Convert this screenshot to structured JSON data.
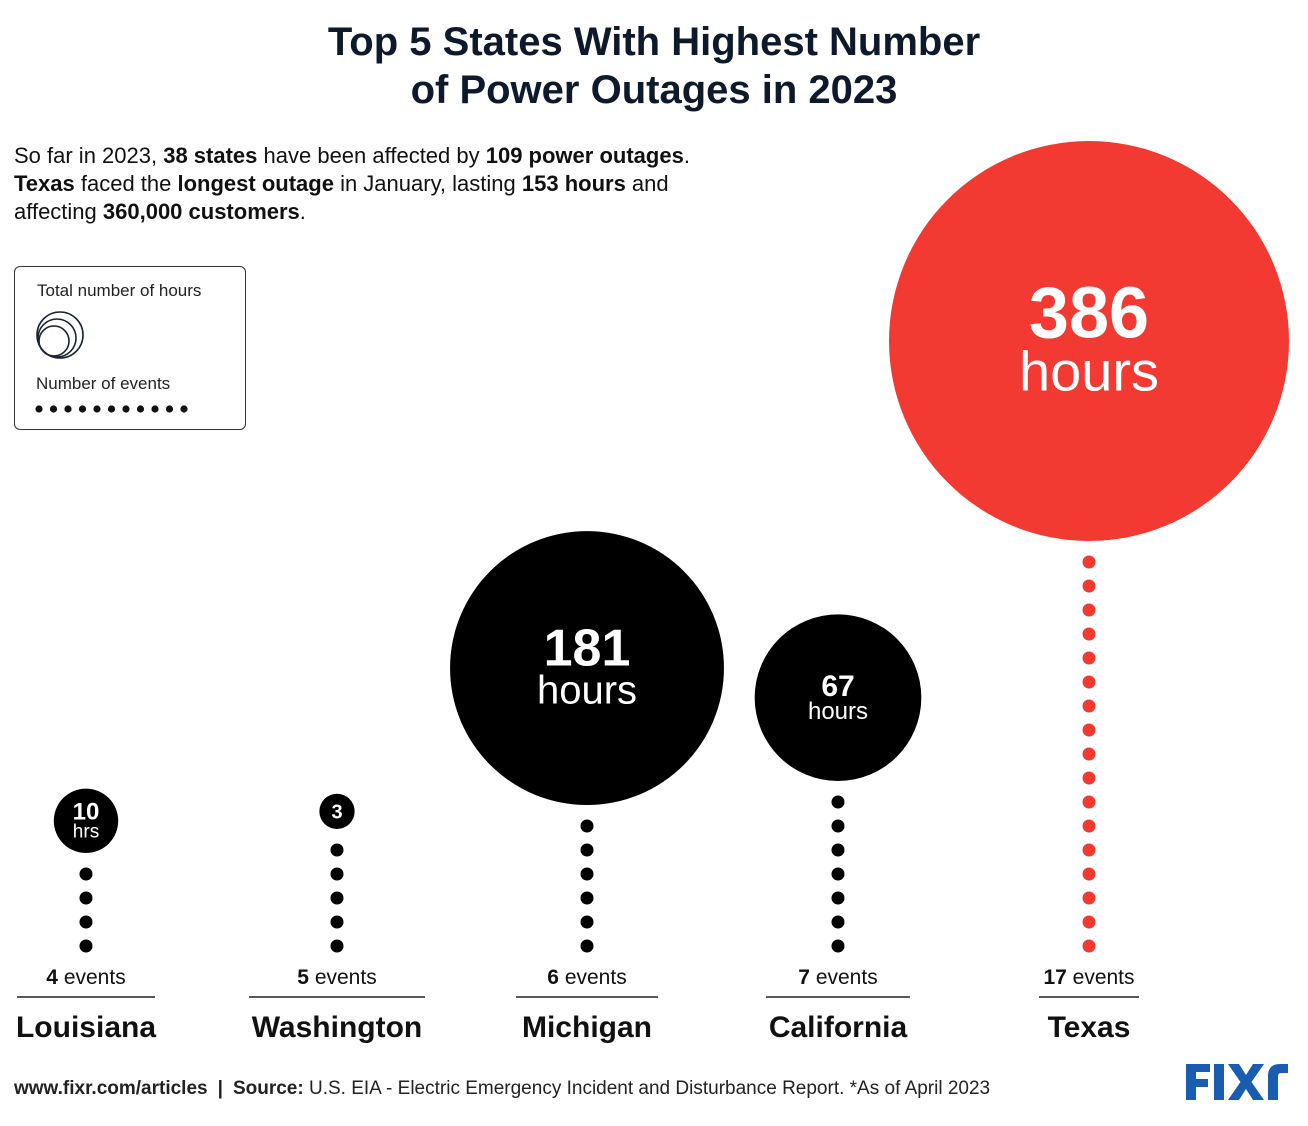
{
  "title": {
    "line1": "Top 5 States With Highest Number",
    "line2": "of Power Outages in 2023"
  },
  "intro": {
    "p1": "So far in 2023, ",
    "b1": "38 states",
    "p2": " have been affected by ",
    "b2": "109 power outages",
    "p3": ". ",
    "b3": "Texas",
    "p4": " faced the ",
    "b4": "longest outage",
    "p5": " in January, lasting ",
    "b5": "153 hours",
    "p6": " and affecting ",
    "b6": "360,000 customers",
    "p7": "."
  },
  "legend": {
    "hours_label": "Total number of hours",
    "events_label": "Number of events"
  },
  "footer": {
    "site": "www.fixr.com/articles",
    "separator": "|",
    "source_label": "Source:",
    "source_text": " U.S. EIA  - Electric Emergency Incident and Disturbance Report. *As of April 2023"
  },
  "logo": {
    "text": "FIXR",
    "color": "#1a5cb0"
  },
  "colors": {
    "highlight": "#f23a32",
    "default": "#000000",
    "text": "#111111"
  },
  "chart_data": {
    "type": "bubble",
    "categories": [
      "Louisiana",
      "Washington",
      "Michigan",
      "California",
      "Texas"
    ],
    "series": [
      {
        "name": "Total number of hours",
        "values": [
          10,
          3,
          181,
          67,
          386
        ]
      },
      {
        "name": "Number of events",
        "values": [
          4,
          5,
          6,
          7,
          17
        ]
      }
    ],
    "hour_labels": [
      "10",
      "3",
      "181",
      "67",
      "386"
    ],
    "hour_units": [
      "hrs",
      "",
      "hours",
      "hours",
      "hours"
    ],
    "event_numbers": [
      "4",
      "5",
      "6",
      "7",
      "17"
    ],
    "event_unit": " events",
    "highlight_category": "Texas"
  }
}
